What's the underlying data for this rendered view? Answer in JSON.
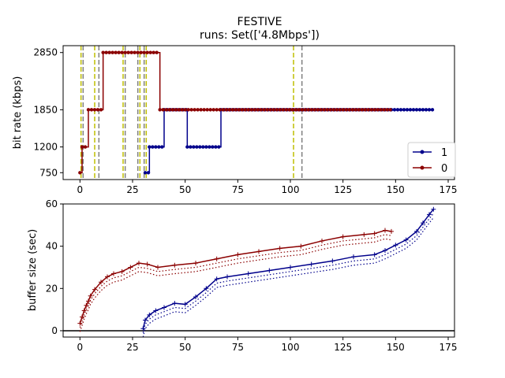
{
  "figure": {
    "title": "FESTIVE",
    "subtitle": "runs: Set(['4.8Mbps'])"
  },
  "chart_data": [
    {
      "type": "line",
      "ylabel": "bit rate (kbps)",
      "xlabel": "",
      "xlim": [
        -8,
        178
      ],
      "ylim": [
        630,
        2970
      ],
      "xticks": [
        0,
        25,
        50,
        75,
        100,
        125,
        150,
        175
      ],
      "yticks": [
        750,
        1200,
        1850,
        2850
      ],
      "grid": false,
      "legend": {
        "position": "bottom-right",
        "entries": [
          "1",
          "0"
        ]
      },
      "vlines": [
        {
          "x": 0.5,
          "color": "#bfbf00"
        },
        {
          "x": 1.5,
          "color": "#808080"
        },
        {
          "x": 7,
          "color": "#bfbf00"
        },
        {
          "x": 9,
          "color": "#808080"
        },
        {
          "x": 20.5,
          "color": "#bfbf00"
        },
        {
          "x": 21.5,
          "color": "#808080"
        },
        {
          "x": 27.5,
          "color": "#808080"
        },
        {
          "x": 28.5,
          "color": "#bfbf00"
        },
        {
          "x": 30.5,
          "color": "#808080"
        },
        {
          "x": 31.5,
          "color": "#bfbf00"
        },
        {
          "x": 101.5,
          "color": "#bfbf00"
        },
        {
          "x": 105.5,
          "color": "#808080"
        }
      ],
      "series": [
        {
          "name": "1",
          "color": "#00008b",
          "steps": [
            {
              "from": 31,
              "to": 33,
              "value": 750
            },
            {
              "from": 33,
              "to": 40,
              "value": 1200
            },
            {
              "from": 40,
              "to": 51,
              "value": 1850
            },
            {
              "from": 51,
              "to": 67,
              "value": 1200
            },
            {
              "from": 67,
              "to": 168,
              "value": 1850
            }
          ]
        },
        {
          "name": "0",
          "color": "#8b0000",
          "steps": [
            {
              "from": 0,
              "to": 1,
              "value": 750
            },
            {
              "from": 1,
              "to": 4,
              "value": 1200
            },
            {
              "from": 4,
              "to": 11,
              "value": 1850
            },
            {
              "from": 11,
              "to": 38,
              "value": 2850
            },
            {
              "from": 38,
              "to": 148,
              "value": 1850
            }
          ]
        }
      ]
    },
    {
      "type": "line",
      "ylabel": "buffer size (sec)",
      "xlabel": "",
      "xlim": [
        -8,
        178
      ],
      "ylim": [
        -3,
        60
      ],
      "xticks": [
        0,
        25,
        50,
        75,
        100,
        125,
        150,
        175
      ],
      "yticks": [
        0,
        20,
        40,
        60
      ],
      "grid": false,
      "baseline": 0,
      "series": [
        {
          "name": "0",
          "color": "#8b0000",
          "x": [
            0,
            1,
            2,
            3,
            4,
            5,
            7,
            10,
            13,
            16,
            20,
            24,
            28,
            32,
            37,
            45,
            55,
            65,
            75,
            85,
            95,
            105,
            115,
            125,
            135,
            140,
            145,
            148
          ],
          "y": [
            3.5,
            6.5,
            9.5,
            12,
            14,
            16.5,
            19.5,
            23,
            25.5,
            27,
            28,
            30,
            32,
            31.5,
            30,
            31,
            32,
            34,
            36,
            37.5,
            39,
            40,
            42.5,
            44.5,
            45.5,
            46,
            47.5,
            47
          ]
        },
        {
          "name": "1",
          "color": "#00008b",
          "x": [
            30,
            31,
            33,
            36,
            40,
            45,
            50,
            55,
            60,
            65,
            70,
            80,
            90,
            100,
            110,
            120,
            130,
            140,
            145,
            150,
            155,
            160,
            163,
            166,
            168
          ],
          "y": [
            1,
            5,
            7.5,
            9.5,
            11,
            13,
            12.5,
            16,
            20,
            24.5,
            25.5,
            27,
            28.5,
            30,
            31.5,
            33,
            35,
            36,
            38,
            40.5,
            43,
            47,
            51,
            55,
            57.5
          ]
        }
      ]
    }
  ]
}
